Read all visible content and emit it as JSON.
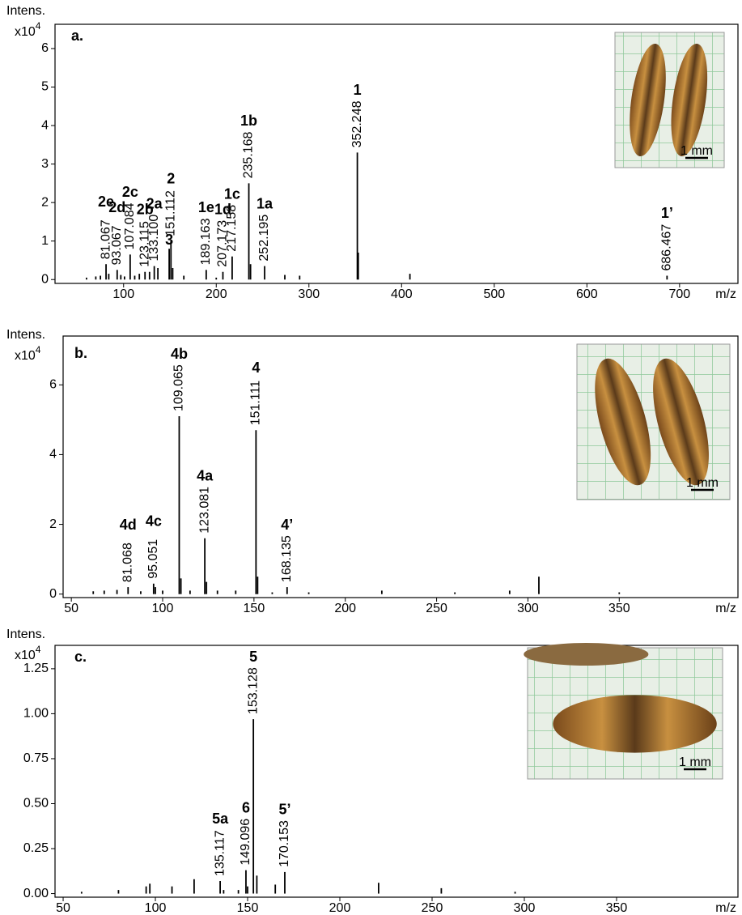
{
  "chart_data": [
    {
      "type": "stem",
      "title": "a.",
      "ylabel": "Intens.",
      "y_scale_base": "x10",
      "y_scale_exponent": "4",
      "xlabel": "m/z",
      "color": "#000000",
      "xlim": [
        26,
        763
      ],
      "ylim": [
        -0.1,
        6.63
      ],
      "xticks": [
        100,
        200,
        300,
        400,
        500,
        600,
        700
      ],
      "yticks": [
        0,
        1,
        2,
        3,
        4,
        5,
        6
      ],
      "x": [
        60,
        70,
        75,
        81.067,
        84,
        93.067,
        97,
        101,
        107.084,
        112,
        117,
        123.115,
        128,
        133.1,
        137,
        149.2,
        151.112,
        153,
        165,
        189.163,
        200,
        207.173,
        217.158,
        235.168,
        237,
        252.195,
        274,
        290,
        352.248,
        353.25,
        409,
        686.467
      ],
      "values": [
        0.05,
        0.08,
        0.1,
        0.4,
        0.15,
        0.25,
        0.12,
        0.08,
        0.65,
        0.1,
        0.15,
        0.2,
        0.2,
        0.35,
        0.3,
        0.8,
        1.0,
        0.3,
        0.1,
        0.25,
        0.05,
        0.2,
        0.6,
        2.5,
        0.4,
        0.35,
        0.12,
        0.1,
        3.3,
        0.7,
        0.15,
        0.1
      ],
      "x_labels": [
        null,
        null,
        null,
        "81.067",
        null,
        "93.067",
        null,
        null,
        "107.084",
        null,
        null,
        "123.115",
        null,
        "133.100",
        null,
        null,
        "151.112",
        null,
        null,
        "189.163",
        null,
        "207.173",
        "217.158",
        "235.168",
        null,
        "252.195",
        null,
        null,
        "352.248",
        null,
        null,
        "686.467"
      ],
      "peak_names": [
        null,
        null,
        null,
        "2e",
        null,
        "2d",
        null,
        null,
        "2c",
        null,
        null,
        "2b",
        null,
        "2a",
        null,
        "3",
        "2",
        null,
        null,
        "1e",
        null,
        "1d",
        "1c",
        "1b",
        null,
        "1a",
        null,
        null,
        "1",
        null,
        null,
        "1’"
      ],
      "inset_scale_label": "1 mm"
    },
    {
      "type": "stem",
      "title": "b.",
      "ylabel": "Intens.",
      "y_scale_base": "x10",
      "y_scale_exponent": "4",
      "xlabel": "m/z",
      "color": "#000000",
      "xlim": [
        45.5,
        415
      ],
      "ylim": [
        -0.1,
        7.4
      ],
      "xticks": [
        50,
        100,
        150,
        200,
        250,
        300,
        350
      ],
      "yticks": [
        0,
        2,
        4,
        6
      ],
      "x": [
        62,
        68,
        75,
        81.068,
        88,
        95.051,
        96,
        100,
        109.065,
        110,
        115,
        123.081,
        124,
        130,
        140,
        151.111,
        152,
        160,
        168.135,
        180,
        220,
        260,
        290,
        306,
        350
      ],
      "values": [
        0.08,
        0.1,
        0.12,
        0.2,
        0.08,
        0.3,
        0.2,
        0.1,
        5.1,
        0.45,
        0.1,
        1.6,
        0.35,
        0.1,
        0.1,
        4.7,
        0.5,
        0.05,
        0.2,
        0.05,
        0.1,
        0.05,
        0.1,
        0.5,
        0.05
      ],
      "x_labels": [
        null,
        null,
        null,
        "81.068",
        null,
        "95.051",
        null,
        null,
        "109.065",
        null,
        null,
        "123.081",
        null,
        null,
        null,
        "151.111",
        null,
        null,
        "168.135",
        null,
        null,
        null,
        null,
        null,
        null
      ],
      "peak_names": [
        null,
        null,
        null,
        "4d",
        null,
        "4c",
        null,
        null,
        "4b",
        null,
        null,
        "4a",
        null,
        null,
        null,
        "4",
        null,
        null,
        "4’",
        null,
        null,
        null,
        null,
        null,
        null
      ],
      "inset_scale_label": "1 mm"
    },
    {
      "type": "stem",
      "title": "c.",
      "ylabel": "Intens.",
      "y_scale_base": "x10",
      "y_scale_exponent": "4",
      "xlabel": "m/z",
      "color": "#000000",
      "xlim": [
        45.6,
        415.8
      ],
      "ylim": [
        -0.02,
        1.38
      ],
      "xticks": [
        50,
        100,
        150,
        200,
        250,
        300,
        350
      ],
      "yticks": [
        {
          "value": 0,
          "label": "0.00"
        },
        0.25,
        {
          "value": 0.5,
          "label": "0.50"
        },
        0.75,
        {
          "value": 1,
          "label": "1.00"
        },
        1.25
      ],
      "x": [
        60,
        80,
        95,
        97,
        109,
        121,
        135.117,
        137,
        145,
        149.096,
        150,
        153.128,
        155,
        165,
        170.153,
        221,
        255,
        295
      ],
      "values": [
        0.01,
        0.02,
        0.04,
        0.055,
        0.04,
        0.08,
        0.07,
        0.02,
        0.02,
        0.13,
        0.04,
        0.97,
        0.1,
        0.05,
        0.12,
        0.06,
        0.03,
        0.01
      ],
      "x_labels": [
        null,
        null,
        null,
        null,
        null,
        null,
        "135.117",
        null,
        null,
        "149.096",
        null,
        "153.128",
        null,
        null,
        "170.153",
        null,
        null,
        null
      ],
      "peak_names": [
        null,
        null,
        null,
        null,
        null,
        null,
        "5a",
        null,
        null,
        "6",
        null,
        "5",
        null,
        null,
        "5’",
        null,
        null,
        null
      ],
      "inset_scale_label": "1 mm"
    }
  ]
}
